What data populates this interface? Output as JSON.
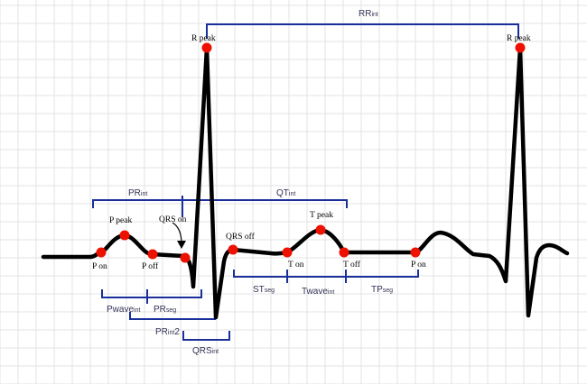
{
  "colors": {
    "background": "#ffffff",
    "grid": "#e3e3e3",
    "trace": "#000000",
    "marker": "#ee1100",
    "bracket": "#1a2f9a",
    "arrow": "#000000"
  },
  "fiducial_points": [
    {
      "key": "p_on",
      "label": "P on"
    },
    {
      "key": "p_peak",
      "label": "P peak"
    },
    {
      "key": "p_off",
      "label": "P off"
    },
    {
      "key": "qrs_on",
      "label": "QRS on"
    },
    {
      "key": "r_peak_1",
      "label": "R peak"
    },
    {
      "key": "qrs_off",
      "label": "QRS off"
    },
    {
      "key": "t_on",
      "label": "T on"
    },
    {
      "key": "t_peak",
      "label": "T peak"
    },
    {
      "key": "t_off",
      "label": "T off"
    },
    {
      "key": "p_on_2",
      "label": "P on"
    },
    {
      "key": "r_peak_2",
      "label": "R peak"
    }
  ],
  "intervals": [
    {
      "key": "rr",
      "main": "RR",
      "sub": "int",
      "tail": ""
    },
    {
      "key": "pr",
      "main": "PR",
      "sub": "int",
      "tail": ""
    },
    {
      "key": "qt",
      "main": "QT",
      "sub": "int",
      "tail": ""
    },
    {
      "key": "st",
      "main": "ST",
      "sub": "seg",
      "tail": ""
    },
    {
      "key": "twave",
      "main": "Twave",
      "sub": "int",
      "tail": ""
    },
    {
      "key": "tp",
      "main": "TP",
      "sub": "seg",
      "tail": ""
    },
    {
      "key": "pwave",
      "main": "Pwave",
      "sub": "int",
      "tail": ""
    },
    {
      "key": "prseg",
      "main": "PR",
      "sub": "seg",
      "tail": ""
    },
    {
      "key": "pr2",
      "main": "PR",
      "sub": "int",
      "tail": "2"
    },
    {
      "key": "qrs",
      "main": "QRS",
      "sub": "int",
      "tail": ""
    }
  ]
}
